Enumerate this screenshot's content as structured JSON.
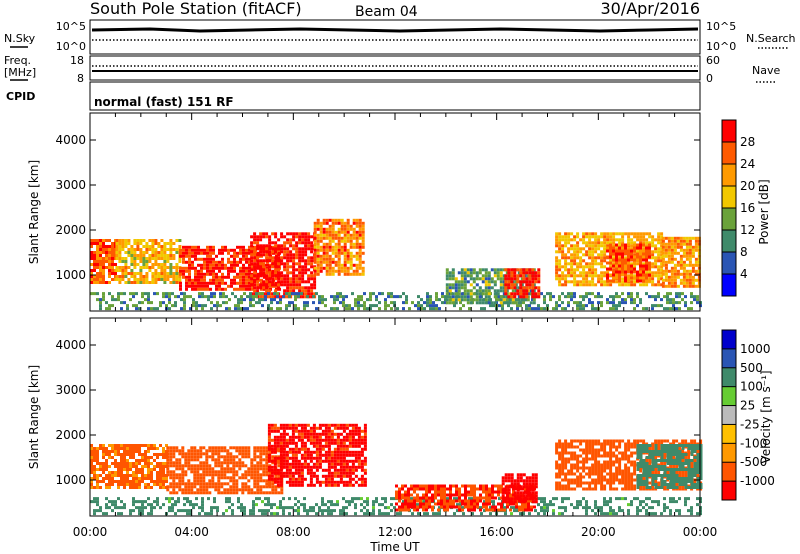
{
  "header": {
    "station": "South Pole Station (fitACF)",
    "beam": "Beam 04",
    "date": "30/Apr/2016"
  },
  "sky_panel": {
    "left_label": "N.Sky",
    "right_label": "N.Search",
    "left_ticks": [
      "10^5",
      "10^0"
    ],
    "right_ticks": [
      "10^5",
      "10^0"
    ]
  },
  "freq_panel": {
    "left_label_line1": "Freq.",
    "left_label_line2": "[MHz]",
    "right_label": "Nave",
    "left_ticks": [
      "18",
      "8"
    ],
    "right_ticks": [
      "60",
      "0"
    ]
  },
  "cpid": {
    "label": "CPID",
    "value": "normal (fast) 151 RF"
  },
  "colors": {
    "power": [
      "#0000ff",
      "#2a55b4",
      "#3f8a6a",
      "#6aa23a",
      "#f2c800",
      "#ff9a00",
      "#ff5a00",
      "#ff0000"
    ],
    "velocity": [
      "#ff0000",
      "#ff5500",
      "#ff9900",
      "#ffc000",
      "#bbbbbb",
      "#66cc33",
      "#3f8a6a",
      "#2a55b4",
      "#0000cc"
    ]
  },
  "chart_data": [
    {
      "type": "heatmap",
      "name": "power",
      "ylabel": "Slant Range [km]",
      "xlim": [
        0,
        24
      ],
      "ylim": [
        200,
        4600
      ],
      "yticks": [
        "1000",
        "2000",
        "3000",
        "4000"
      ],
      "colorbar": {
        "label": "Power [dB]",
        "range": [
          0,
          32
        ],
        "ticks": [
          "4",
          "8",
          "12",
          "16",
          "20",
          "24",
          "28"
        ]
      },
      "regions": [
        {
          "t0": 0.0,
          "t1": 1.0,
          "r0": 800,
          "r1": 1800,
          "value": 26
        },
        {
          "t0": 1.0,
          "t1": 3.5,
          "r0": 800,
          "r1": 1800,
          "value": 20
        },
        {
          "t0": 3.5,
          "t1": 7.5,
          "r0": 650,
          "r1": 1650,
          "value": 29
        },
        {
          "t0": 6.3,
          "t1": 8.8,
          "r0": 500,
          "r1": 1950,
          "value": 30
        },
        {
          "t0": 8.8,
          "t1": 10.8,
          "r0": 1000,
          "r1": 2250,
          "value": 24
        },
        {
          "t0": 0.0,
          "t1": 24.0,
          "r0": 280,
          "r1": 620,
          "value": 11
        },
        {
          "t0": 14.0,
          "t1": 17.5,
          "r0": 380,
          "r1": 1150,
          "value": 12
        },
        {
          "t0": 16.3,
          "t1": 17.6,
          "r0": 500,
          "r1": 1150,
          "value": 29
        },
        {
          "t0": 18.3,
          "t1": 22.5,
          "r0": 750,
          "r1": 1950,
          "value": 21
        },
        {
          "t0": 20.3,
          "t1": 22.0,
          "r0": 850,
          "r1": 1700,
          "value": 27
        },
        {
          "t0": 22.5,
          "t1": 24.0,
          "r0": 750,
          "r1": 1850,
          "value": 22
        }
      ]
    },
    {
      "type": "heatmap",
      "name": "velocity",
      "ylabel": "Slant Range [km]",
      "xlabel": "Time UT",
      "xlim": [
        0,
        24
      ],
      "ylim": [
        200,
        4600
      ],
      "xticks": [
        "00:00",
        "04:00",
        "08:00",
        "12:00",
        "16:00",
        "20:00",
        "00:00"
      ],
      "yticks": [
        "1000",
        "2000",
        "3000",
        "4000"
      ],
      "colorbar": {
        "label": "Velocity [m s⁻¹]",
        "ticks": [
          "1000",
          "500",
          "100",
          "25",
          "-25",
          "-100",
          "-500",
          "-1000"
        ]
      },
      "regions": [
        {
          "t0": 0.0,
          "t1": 3.0,
          "r0": 800,
          "r1": 1800,
          "value": -150
        },
        {
          "t0": 3.0,
          "t1": 7.5,
          "r0": 700,
          "r1": 1750,
          "value": -250
        },
        {
          "t0": 7.0,
          "t1": 10.8,
          "r0": 900,
          "r1": 2250,
          "value": -700
        },
        {
          "t0": 0.0,
          "t1": 24.0,
          "r0": 280,
          "r1": 620,
          "value": 200
        },
        {
          "t0": 12.0,
          "t1": 17.5,
          "r0": 350,
          "r1": 900,
          "value": -500
        },
        {
          "t0": 16.2,
          "t1": 17.6,
          "r0": 500,
          "r1": 1150,
          "value": -900
        },
        {
          "t0": 18.3,
          "t1": 24.0,
          "r0": 800,
          "r1": 1900,
          "value": -250
        },
        {
          "t0": 21.5,
          "t1": 24.0,
          "r0": 800,
          "r1": 1800,
          "value": 300
        }
      ]
    }
  ]
}
